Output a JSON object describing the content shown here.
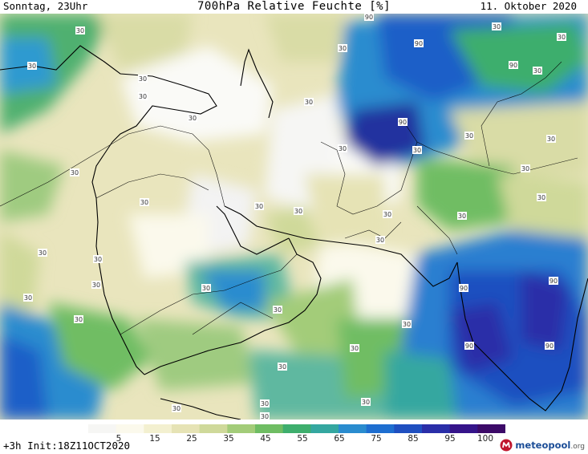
{
  "header": {
    "left": "Sonntag, 23Uhr",
    "center": "700hPa Relative Feuchte [%]",
    "right": "11. Oktober 2020"
  },
  "footer": {
    "init": "+3h Init:18Z11OCT2020",
    "logo_text": "meteopool",
    "logo_tld": ".org"
  },
  "colorbar": {
    "ticks": [
      "5",
      "15",
      "25",
      "35",
      "45",
      "55",
      "65",
      "75",
      "85",
      "95",
      "100"
    ],
    "colors": [
      "#f6f6f4",
      "#fbf9ec",
      "#f3f0d0",
      "#e6e3b5",
      "#cfd99a",
      "#a3cc79",
      "#6fbd63",
      "#3eae6d",
      "#34a7a0",
      "#2a8ccf",
      "#1e6ed0",
      "#1f4fc0",
      "#2a2ea8",
      "#35148a",
      "#3c0a68"
    ]
  },
  "contour_labels": [
    "90",
    "90",
    "90",
    "90",
    "90",
    "90",
    "90",
    "90",
    "30",
    "30",
    "30",
    "30",
    "30",
    "30",
    "30",
    "30",
    "30",
    "30",
    "30",
    "30",
    "30",
    "30",
    "30",
    "30",
    "30",
    "30",
    "30",
    "30",
    "30",
    "30",
    "30",
    "30",
    "30",
    "30",
    "30",
    "30",
    "30",
    "30",
    "30",
    "30",
    "30",
    "30",
    "30",
    "30",
    "30"
  ]
}
